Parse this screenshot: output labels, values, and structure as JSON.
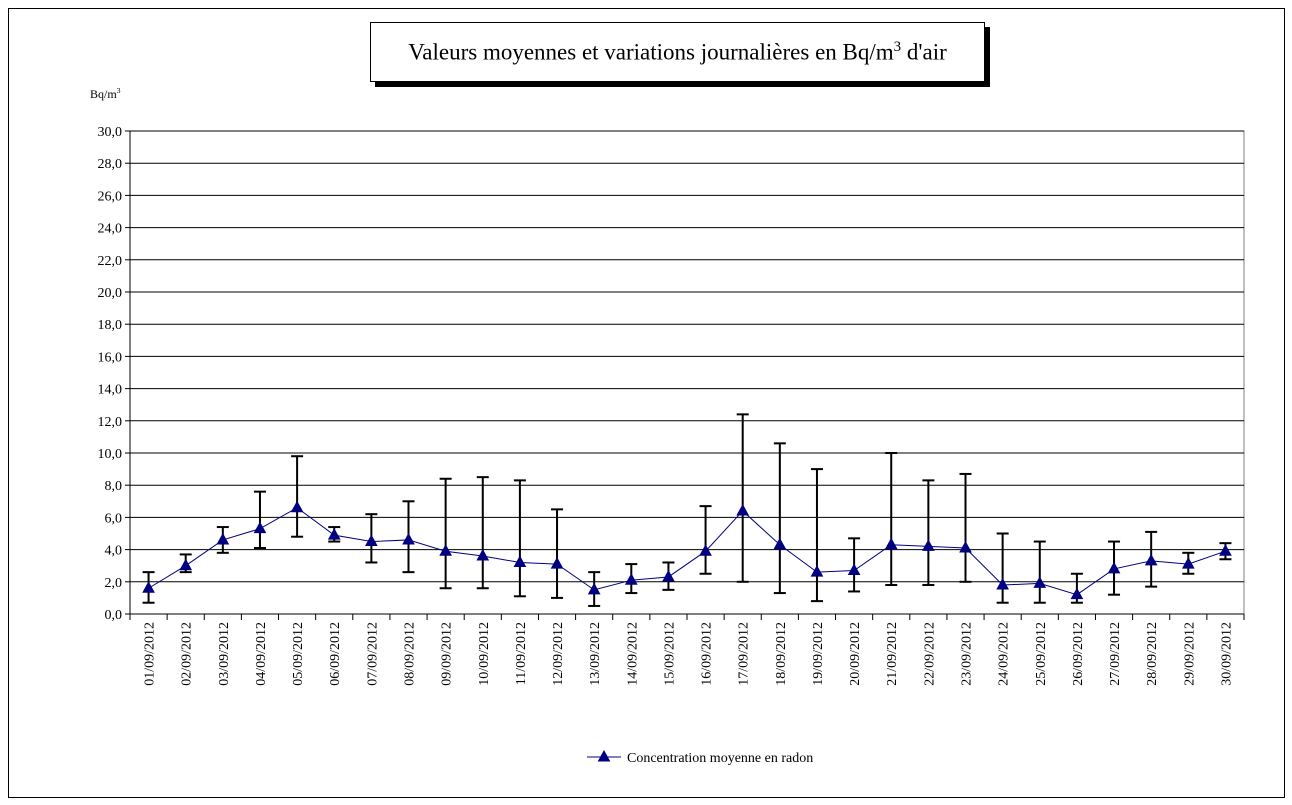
{
  "chart_data": {
    "type": "line",
    "title_main": "Valeurs moyennes et variations journalières en Bq/m",
    "title_sup": "3",
    "title_tail": " d'air",
    "ylabel_main": "Bq/m",
    "ylabel_sup": "3",
    "ylim": [
      0,
      30
    ],
    "ytick_step": 2,
    "grid": true,
    "legend_position": "bottom-center",
    "series_color": "#000080",
    "categories": [
      "01/09/2012",
      "02/09/2012",
      "03/09/2012",
      "04/09/2012",
      "05/09/2012",
      "06/09/2012",
      "07/09/2012",
      "08/09/2012",
      "09/09/2012",
      "10/09/2012",
      "11/09/2012",
      "12/09/2012",
      "13/09/2012",
      "14/09/2012",
      "15/09/2012",
      "16/09/2012",
      "17/09/2012",
      "18/09/2012",
      "19/09/2012",
      "20/09/2012",
      "21/09/2012",
      "22/09/2012",
      "23/09/2012",
      "24/09/2012",
      "25/09/2012",
      "26/09/2012",
      "27/09/2012",
      "28/09/2012",
      "29/09/2012",
      "30/09/2012"
    ],
    "series": [
      {
        "name": "Concentration moyenne en radon",
        "values": [
          1.6,
          3.0,
          4.6,
          5.3,
          6.6,
          4.9,
          4.5,
          4.6,
          3.9,
          3.6,
          3.2,
          3.1,
          1.5,
          2.1,
          2.3,
          3.9,
          6.4,
          4.3,
          2.6,
          2.7,
          4.3,
          4.2,
          4.1,
          1.8,
          1.9,
          1.2,
          2.8,
          3.3,
          3.1,
          3.9
        ],
        "min": [
          0.7,
          2.6,
          3.8,
          4.1,
          4.8,
          4.5,
          3.2,
          2.6,
          1.6,
          1.6,
          1.1,
          1.0,
          0.5,
          1.3,
          1.5,
          2.5,
          2.0,
          1.3,
          0.8,
          1.4,
          1.8,
          1.8,
          2.0,
          0.7,
          0.7,
          0.7,
          1.2,
          1.7,
          2.5,
          3.4
        ],
        "max": [
          2.6,
          3.7,
          5.4,
          7.6,
          9.8,
          5.4,
          6.2,
          7.0,
          8.4,
          8.5,
          8.3,
          6.5,
          2.6,
          3.1,
          3.2,
          6.7,
          12.4,
          10.6,
          9.0,
          4.7,
          10.0,
          8.3,
          8.7,
          5.0,
          4.5,
          2.5,
          4.5,
          5.1,
          3.8,
          4.4
        ]
      }
    ]
  }
}
